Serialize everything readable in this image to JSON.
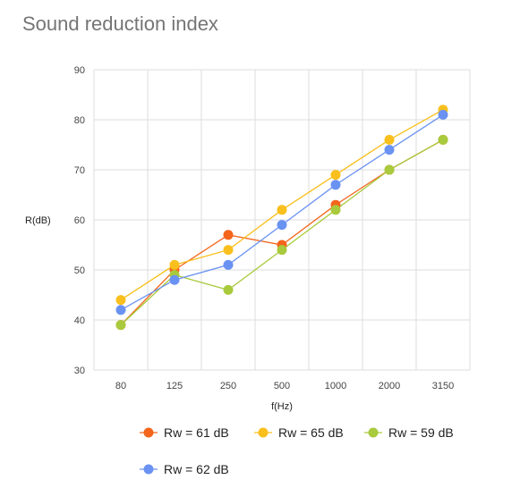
{
  "chart_data": {
    "type": "line",
    "title": "Sound reduction index",
    "xlabel": "f(Hz)",
    "ylabel": "R(dB)",
    "categories": [
      "80",
      "125",
      "250",
      "500",
      "1000",
      "2000",
      "3150"
    ],
    "ylim": [
      30,
      90
    ],
    "yticks": [
      30,
      40,
      50,
      60,
      70,
      80,
      90
    ],
    "grid": true,
    "legend_position": "bottom",
    "series": [
      {
        "name": "Rw = 61 dB",
        "color": "#F4651C",
        "values": [
          39,
          50,
          57,
          55,
          63,
          70,
          76
        ]
      },
      {
        "name": "Rw = 65 dB",
        "color": "#F9BF1C",
        "values": [
          44,
          51,
          54,
          62,
          69,
          76,
          82
        ]
      },
      {
        "name": "Rw = 59 dB",
        "color": "#A8CA3C",
        "values": [
          39,
          49,
          46,
          54,
          62,
          70,
          76
        ]
      },
      {
        "name": "Rw = 62 dB",
        "color": "#6A92F2",
        "values": [
          42,
          48,
          51,
          59,
          67,
          74,
          81
        ]
      }
    ]
  }
}
